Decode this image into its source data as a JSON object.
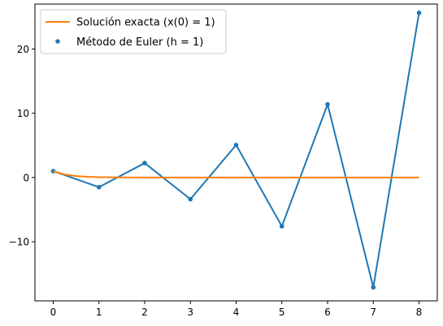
{
  "chart_data": {
    "type": "line",
    "title": "",
    "xlabel": "",
    "ylabel": "",
    "xlim": [
      -0.4,
      8.4
    ],
    "ylim": [
      -19.2,
      27.0
    ],
    "xticks": [
      0,
      1,
      2,
      3,
      4,
      5,
      6,
      7,
      8
    ],
    "yticks": [
      -10,
      0,
      10,
      20
    ],
    "grid": false,
    "legend_position": "upper-left",
    "series": [
      {
        "name": "Solución exacta (x(0) = 1)",
        "style": "line",
        "color": "#ff7f0e",
        "x": [
          0,
          0.25,
          0.5,
          0.75,
          1,
          1.5,
          2,
          3,
          4,
          5,
          6,
          7,
          8
        ],
        "y": [
          1,
          0.472,
          0.223,
          0.105,
          0.05,
          0.011,
          0.002,
          0,
          0,
          0,
          0,
          0,
          0
        ]
      },
      {
        "name": "Método de Euler (h = 1)",
        "style": "line+markers",
        "color": "#1f77b4",
        "x": [
          0,
          1,
          2,
          3,
          4,
          5,
          6,
          7,
          8
        ],
        "y": [
          1,
          -1.5,
          2.25,
          -3.375,
          5.0625,
          -7.59,
          11.39,
          -17.09,
          25.63
        ]
      }
    ]
  }
}
